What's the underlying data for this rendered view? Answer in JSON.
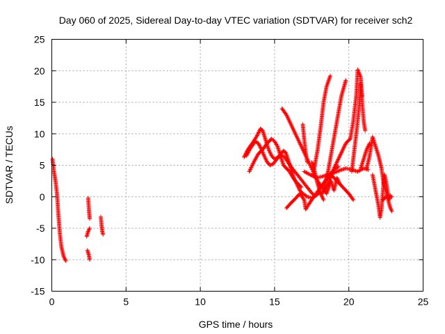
{
  "chart_data": {
    "type": "scatter",
    "title": "Day 060 of 2025, Sidereal Day-to-day VTEC variation (SDTVAR) for receiver sch2",
    "xlabel": "GPS time / hours",
    "ylabel": "SDTVAR / TECUs",
    "xlim": [
      0,
      25
    ],
    "ylim": [
      -15,
      25
    ],
    "xticks": [
      0,
      5,
      10,
      15,
      20,
      25
    ],
    "yticks": [
      -15,
      -10,
      -5,
      0,
      5,
      10,
      15,
      20,
      25
    ],
    "grid": true,
    "marker": "+",
    "color": "#ff0000",
    "series": [
      {
        "name": "SDTVAR",
        "segments": [
          [
            [
              0.05,
              6.0
            ],
            [
              0.15,
              4.0
            ],
            [
              0.25,
              2.5
            ],
            [
              0.35,
              0.5
            ],
            [
              0.45,
              -3.0
            ],
            [
              0.55,
              -6.0
            ],
            [
              0.65,
              -8.0
            ],
            [
              0.8,
              -9.5
            ],
            [
              0.95,
              -10.2
            ]
          ],
          [
            [
              2.35,
              -6.3
            ],
            [
              2.45,
              -5.5
            ],
            [
              2.55,
              -5.0
            ]
          ],
          [
            [
              2.45,
              -0.2
            ],
            [
              2.5,
              -2.0
            ],
            [
              2.55,
              -3.5
            ]
          ],
          [
            [
              2.4,
              -8.5
            ],
            [
              2.5,
              -9.3
            ],
            [
              2.55,
              -10.0
            ]
          ],
          [
            [
              3.3,
              -3.2
            ],
            [
              3.35,
              -4.5
            ],
            [
              3.4,
              -5.5
            ],
            [
              3.45,
              -6.0
            ]
          ],
          [
            [
              12.95,
              6.3
            ],
            [
              13.2,
              7.5
            ],
            [
              13.5,
              8.5
            ],
            [
              13.8,
              9.6
            ],
            [
              14.05,
              10.8
            ],
            [
              14.2,
              10.5
            ],
            [
              14.4,
              9.0
            ],
            [
              14.6,
              7.5
            ],
            [
              14.8,
              6.5
            ],
            [
              15.0,
              6.0
            ],
            [
              15.2,
              6.2
            ],
            [
              15.4,
              6.8
            ],
            [
              15.6,
              7.3
            ],
            [
              15.75,
              7.0
            ],
            [
              15.9,
              6.0
            ],
            [
              16.1,
              4.5
            ],
            [
              16.3,
              3.0
            ],
            [
              16.5,
              2.0
            ],
            [
              16.7,
              1.0
            ],
            [
              16.9,
              0.5
            ],
            [
              17.2,
              0.0
            ],
            [
              17.5,
              -0.2
            ],
            [
              17.8,
              0.2
            ],
            [
              18.1,
              0.8
            ]
          ],
          [
            [
              13.1,
              6.5
            ],
            [
              13.4,
              7.8
            ],
            [
              13.7,
              8.8
            ],
            [
              13.9,
              8.5
            ],
            [
              14.1,
              7.6
            ],
            [
              14.3,
              6.5
            ],
            [
              14.5,
              5.5
            ],
            [
              14.7,
              5.0
            ],
            [
              14.9,
              5.2
            ],
            [
              15.1,
              5.8
            ],
            [
              15.3,
              6.4
            ],
            [
              15.5,
              6.6
            ],
            [
              15.7,
              6.2
            ],
            [
              15.9,
              5.5
            ],
            [
              16.1,
              4.8
            ],
            [
              16.3,
              4.2
            ],
            [
              16.5,
              3.6
            ],
            [
              16.7,
              3.0
            ],
            [
              16.9,
              2.4
            ],
            [
              17.1,
              1.8
            ],
            [
              17.3,
              1.2
            ],
            [
              17.5,
              0.6
            ],
            [
              17.7,
              0.2
            ]
          ],
          [
            [
              13.3,
              4.0
            ],
            [
              13.6,
              5.5
            ],
            [
              13.9,
              6.8
            ],
            [
              14.2,
              7.5
            ],
            [
              14.5,
              8.5
            ],
            [
              14.8,
              9.2
            ],
            [
              15.0,
              8.8
            ],
            [
              15.2,
              8.0
            ],
            [
              15.4,
              6.5
            ],
            [
              15.6,
              5.0
            ],
            [
              15.8,
              4.5
            ],
            [
              16.0,
              4.0
            ],
            [
              16.2,
              3.2
            ],
            [
              16.4,
              2.5
            ],
            [
              16.6,
              2.0
            ],
            [
              16.8,
              1.5
            ]
          ],
          [
            [
              15.5,
              14.0
            ],
            [
              15.8,
              13.0
            ],
            [
              16.1,
              11.5
            ],
            [
              16.4,
              10.0
            ],
            [
              16.7,
              8.5
            ],
            [
              17.0,
              7.0
            ],
            [
              17.3,
              5.5
            ],
            [
              17.6,
              4.0
            ],
            [
              17.9,
              2.5
            ],
            [
              18.2,
              1.5
            ]
          ],
          [
            [
              16.9,
              11.5
            ],
            [
              17.0,
              9.0
            ],
            [
              17.1,
              7.0
            ],
            [
              17.2,
              5.5
            ]
          ],
          [
            [
              15.8,
              -1.8
            ],
            [
              16.1,
              -1.0
            ],
            [
              16.4,
              -0.3
            ],
            [
              16.7,
              0.5
            ],
            [
              17.0,
              -0.5
            ],
            [
              17.1,
              -2.0
            ],
            [
              17.3,
              -1.2
            ],
            [
              17.5,
              -0.5
            ],
            [
              17.8,
              0.5
            ],
            [
              18.1,
              1.5
            ],
            [
              18.4,
              2.5
            ],
            [
              18.7,
              3.5
            ],
            [
              19.0,
              4.3
            ],
            [
              19.3,
              4.8
            ]
          ],
          [
            [
              17.0,
              4.0
            ],
            [
              17.4,
              3.5
            ],
            [
              17.8,
              3.0
            ],
            [
              18.2,
              3.2
            ],
            [
              18.6,
              3.5
            ],
            [
              19.0,
              3.8
            ],
            [
              19.4,
              4.2
            ],
            [
              19.8,
              4.5
            ],
            [
              20.2,
              4.3
            ],
            [
              20.6,
              4.0
            ],
            [
              21.0,
              4.5
            ],
            [
              21.3,
              4.3
            ]
          ],
          [
            [
              17.5,
              5.5
            ],
            [
              17.7,
              4.0
            ],
            [
              17.9,
              2.0
            ],
            [
              18.1,
              0.5
            ],
            [
              18.3,
              -0.5
            ]
          ],
          [
            [
              17.6,
              3.5
            ],
            [
              17.9,
              7.5
            ],
            [
              18.1,
              11.0
            ],
            [
              18.3,
              15.0
            ],
            [
              18.5,
              17.5
            ],
            [
              18.75,
              19.2
            ]
          ],
          [
            [
              18.3,
              1.0
            ],
            [
              18.6,
              4.0
            ],
            [
              18.9,
              8.0
            ],
            [
              19.2,
              12.0
            ],
            [
              19.5,
              16.0
            ],
            [
              19.8,
              18.5
            ]
          ],
          [
            [
              18.2,
              0.5
            ],
            [
              18.6,
              2.0
            ],
            [
              19.0,
              4.5
            ],
            [
              19.4,
              6.5
            ],
            [
              19.8,
              8.5
            ],
            [
              20.1,
              9.2
            ],
            [
              20.3,
              12.0
            ],
            [
              20.5,
              16.0
            ],
            [
              20.6,
              20.2
            ],
            [
              20.8,
              19.0
            ],
            [
              20.9,
              15.0
            ],
            [
              21.0,
              12.0
            ],
            [
              21.1,
              10.5
            ]
          ],
          [
            [
              18.4,
              2.5
            ],
            [
              18.8,
              3.5
            ],
            [
              19.2,
              2.5
            ],
            [
              19.6,
              1.5
            ],
            [
              20.0,
              0.5
            ],
            [
              20.3,
              -0.5
            ]
          ],
          [
            [
              18.2,
              1.5
            ],
            [
              18.5,
              0.5
            ],
            [
              18.8,
              2.5
            ],
            [
              19.0,
              1.0
            ],
            [
              19.2,
              3.0
            ],
            [
              19.4,
              2.0
            ]
          ],
          [
            [
              20.2,
              4.0
            ],
            [
              20.4,
              8.0
            ],
            [
              20.55,
              11.0
            ],
            [
              20.7,
              14.5
            ],
            [
              20.8,
              18.0
            ],
            [
              20.9,
              16.0
            ]
          ],
          [
            [
              20.8,
              4.5
            ],
            [
              21.0,
              6.0
            ],
            [
              21.2,
              7.5
            ],
            [
              21.4,
              8.5
            ]
          ],
          [
            [
              21.2,
              4.5
            ],
            [
              21.4,
              6.5
            ],
            [
              21.6,
              9.5
            ],
            [
              21.8,
              8.0
            ],
            [
              22.0,
              6.5
            ],
            [
              22.2,
              4.5
            ],
            [
              22.35,
              2.0
            ],
            [
              22.5,
              1.0
            ],
            [
              22.6,
              0.0
            ],
            [
              22.7,
              -1.0
            ],
            [
              22.8,
              -1.8
            ],
            [
              22.9,
              -2.3
            ]
          ],
          [
            [
              21.6,
              3.5
            ],
            [
              21.8,
              1.0
            ],
            [
              22.0,
              -1.5
            ],
            [
              22.1,
              -3.3
            ],
            [
              22.2,
              -2.0
            ],
            [
              22.3,
              1.0
            ],
            [
              22.4,
              3.5
            ],
            [
              22.5,
              2.5
            ],
            [
              22.6,
              1.0
            ],
            [
              22.7,
              -0.5
            ],
            [
              22.8,
              0.2
            ]
          ],
          [
            [
              22.3,
              -0.5
            ],
            [
              22.5,
              0.0
            ],
            [
              22.7,
              0.0
            ],
            [
              22.9,
              0.0
            ]
          ]
        ]
      }
    ]
  }
}
